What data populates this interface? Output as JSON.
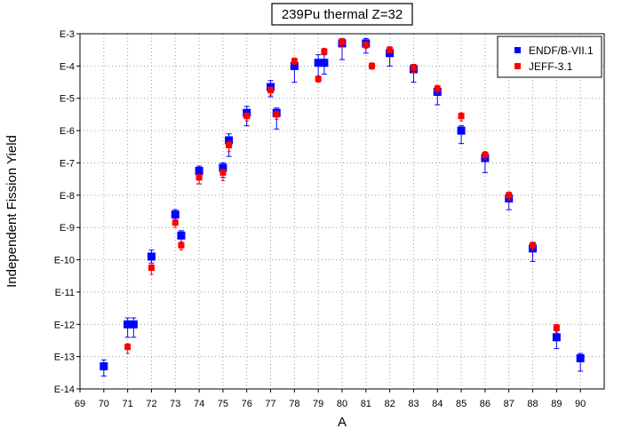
{
  "chart_data": {
    "type": "scatter",
    "title": "239Pu thermal Z=32",
    "xlabel": "A",
    "ylabel": "Independent Fission Yield",
    "xlim": [
      69,
      91
    ],
    "ylim_exponent": [
      -14,
      -3
    ],
    "y_scale": "log",
    "grid": true,
    "legend_position": "top-right",
    "x_ticks": [
      "69",
      "70",
      "71",
      "72",
      "73",
      "74",
      "75",
      "76",
      "77",
      "78",
      "79",
      "80",
      "81",
      "82",
      "83",
      "84",
      "85",
      "86",
      "87",
      "88",
      "89",
      "90"
    ],
    "y_ticks": [
      "E-14",
      "E-13",
      "E-12",
      "E-11",
      "E-10",
      "E-9",
      "E-8",
      "E-7",
      "E-6",
      "E-5",
      "E-4",
      "E-3"
    ],
    "series": [
      {
        "name": "ENDF/B-VII.1",
        "color": "#0000ff",
        "marker": "square",
        "points": [
          {
            "x": 70,
            "log10y": -13.3,
            "err_lo": 0.3,
            "err_hi": 0.2
          },
          {
            "x": 71,
            "log10y": -12.0,
            "err_lo": 0.4,
            "err_hi": 0.2
          },
          {
            "x": 71.25,
            "log10y": -12.0,
            "err_lo": 0.4,
            "err_hi": 0.2
          },
          {
            "x": 72,
            "log10y": -9.9,
            "err_lo": 0.2,
            "err_hi": 0.2
          },
          {
            "x": 73,
            "log10y": -8.6,
            "err_lo": 0.2,
            "err_hi": 0.15
          },
          {
            "x": 73.25,
            "log10y": -9.25,
            "err_lo": 0.3,
            "err_hi": 0.15
          },
          {
            "x": 74,
            "log10y": -7.25,
            "err_lo": 0.4,
            "err_hi": 0.15
          },
          {
            "x": 75,
            "log10y": -7.15,
            "err_lo": 0.3,
            "err_hi": 0.15
          },
          {
            "x": 75.25,
            "log10y": -6.3,
            "err_lo": 0.5,
            "err_hi": 0.2
          },
          {
            "x": 76,
            "log10y": -5.45,
            "err_lo": 0.4,
            "err_hi": 0.2
          },
          {
            "x": 77,
            "log10y": -4.65,
            "err_lo": 0.3,
            "err_hi": 0.2
          },
          {
            "x": 77.25,
            "log10y": -5.45,
            "err_lo": 0.5,
            "err_hi": 0.15
          },
          {
            "x": 78,
            "log10y": -4.0,
            "err_lo": 0.5,
            "err_hi": 0.15
          },
          {
            "x": 79,
            "log10y": -3.9,
            "err_lo": 0.45,
            "err_hi": 0.25
          },
          {
            "x": 79.25,
            "log10y": -3.9,
            "err_lo": 0.35,
            "err_hi": 0.25
          },
          {
            "x": 80,
            "log10y": -3.3,
            "err_lo": 0.5,
            "err_hi": 0.15
          },
          {
            "x": 81,
            "log10y": -3.3,
            "err_lo": 0.3,
            "err_hi": 0.15
          },
          {
            "x": 82,
            "log10y": -3.6,
            "err_lo": 0.4,
            "err_hi": 0.15
          },
          {
            "x": 83,
            "log10y": -4.1,
            "err_lo": 0.4,
            "err_hi": 0.15
          },
          {
            "x": 84,
            "log10y": -4.8,
            "err_lo": 0.4,
            "err_hi": 0.15
          },
          {
            "x": 85,
            "log10y": -6.0,
            "err_lo": 0.4,
            "err_hi": 0.15
          },
          {
            "x": 86,
            "log10y": -6.85,
            "err_lo": 0.45,
            "err_hi": 0.15
          },
          {
            "x": 87,
            "log10y": -8.1,
            "err_lo": 0.35,
            "err_hi": 0.15
          },
          {
            "x": 88,
            "log10y": -9.65,
            "err_lo": 0.4,
            "err_hi": 0.15
          },
          {
            "x": 89,
            "log10y": -12.4,
            "err_lo": 0.35,
            "err_hi": 0.2
          },
          {
            "x": 90,
            "log10y": -13.05,
            "err_lo": 0.4,
            "err_hi": 0.15
          }
        ]
      },
      {
        "name": "JEFF-3.1",
        "color": "#ff0000",
        "marker": "square",
        "points": [
          {
            "x": 71,
            "log10y": -12.7,
            "err_lo": 0.2,
            "err_hi": 0.1
          },
          {
            "x": 72,
            "log10y": -10.25,
            "err_lo": 0.2,
            "err_hi": 0.1
          },
          {
            "x": 73,
            "log10y": -8.85,
            "err_lo": 0.15,
            "err_hi": 0.1
          },
          {
            "x": 73.25,
            "log10y": -9.55,
            "err_lo": 0.15,
            "err_hi": 0.1
          },
          {
            "x": 74,
            "log10y": -7.45,
            "err_lo": 0.2,
            "err_hi": 0.1
          },
          {
            "x": 75,
            "log10y": -7.3,
            "err_lo": 0.25,
            "err_hi": 0.1
          },
          {
            "x": 75.25,
            "log10y": -6.45,
            "err_lo": 0.2,
            "err_hi": 0.1
          },
          {
            "x": 76,
            "log10y": -5.55,
            "err_lo": 0.15,
            "err_hi": 0.1
          },
          {
            "x": 77,
            "log10y": -4.75,
            "err_lo": 0.15,
            "err_hi": 0.1
          },
          {
            "x": 77.25,
            "log10y": -5.5,
            "err_lo": 0.15,
            "err_hi": 0.1
          },
          {
            "x": 78,
            "log10y": -3.85,
            "err_lo": 0.1,
            "err_hi": 0.1
          },
          {
            "x": 79,
            "log10y": -4.4,
            "err_lo": 0.1,
            "err_hi": 0.1
          },
          {
            "x": 79.25,
            "log10y": -3.55,
            "err_lo": 0.1,
            "err_hi": 0.1
          },
          {
            "x": 80,
            "log10y": -3.25,
            "err_lo": 0.15,
            "err_hi": 0.1
          },
          {
            "x": 81,
            "log10y": -3.35,
            "err_lo": 0.1,
            "err_hi": 0.1
          },
          {
            "x": 81.25,
            "log10y": -4.0,
            "err_lo": 0.1,
            "err_hi": 0.1
          },
          {
            "x": 82,
            "log10y": -3.5,
            "err_lo": 0.1,
            "err_hi": 0.1
          },
          {
            "x": 83,
            "log10y": -4.05,
            "err_lo": 0.15,
            "err_hi": 0.1
          },
          {
            "x": 84,
            "log10y": -4.7,
            "err_lo": 0.15,
            "err_hi": 0.1
          },
          {
            "x": 85,
            "log10y": -5.55,
            "err_lo": 0.15,
            "err_hi": 0.1
          },
          {
            "x": 86,
            "log10y": -6.75,
            "err_lo": 0.15,
            "err_hi": 0.1
          },
          {
            "x": 87,
            "log10y": -8.0,
            "err_lo": 0.15,
            "err_hi": 0.1
          },
          {
            "x": 88,
            "log10y": -9.55,
            "err_lo": 0.15,
            "err_hi": 0.1
          },
          {
            "x": 89,
            "log10y": -12.1,
            "err_lo": 0.15,
            "err_hi": 0.1
          }
        ]
      }
    ]
  }
}
